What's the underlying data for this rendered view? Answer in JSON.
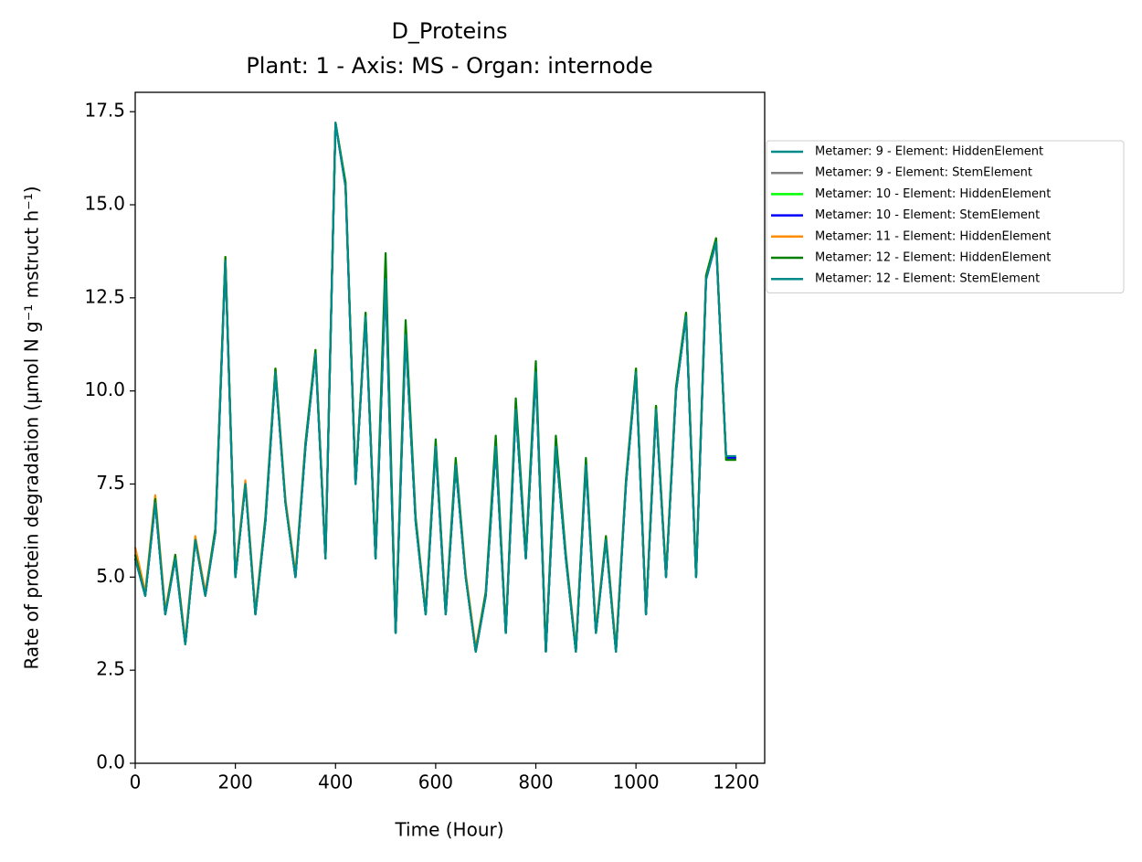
{
  "chart_data": {
    "type": "line",
    "title": "D_Proteins",
    "subtitle": "Plant: 1 - Axis: MS - Organ: internode",
    "x_label": "Time (Hour)",
    "y_label": "Rate of protein degradation (μmol N g⁻¹ mstruct h⁻¹)",
    "x": [
      0,
      20,
      40,
      60,
      80,
      100,
      120,
      140,
      160,
      180,
      200,
      220,
      240,
      260,
      280,
      300,
      320,
      340,
      360,
      380,
      400,
      420,
      440,
      460,
      480,
      500,
      520,
      540,
      560,
      580,
      600,
      620,
      640,
      660,
      680,
      700,
      720,
      740,
      760,
      780,
      800,
      820,
      840,
      860,
      880,
      900,
      920,
      940,
      960,
      980,
      1000,
      1020,
      1040,
      1060,
      1080,
      1100,
      1120,
      1140,
      1160,
      1180,
      1200
    ],
    "series": [
      {
        "name": "Metamer: 9 - Element: HiddenElement",
        "color": "#008b8b",
        "values": [
          5.5,
          4.5,
          7.0,
          4.0,
          5.5,
          3.2,
          6.0,
          4.5,
          6.2,
          13.5,
          5.0,
          7.5,
          4.0,
          6.5,
          10.5,
          7.0,
          5.0,
          8.5,
          11.0,
          5.5,
          17.2,
          15.5,
          7.5,
          12.0,
          5.5,
          13.0,
          3.5,
          11.5,
          6.5,
          4.0,
          8.5,
          4.0,
          8.0,
          5.0,
          3.0,
          4.5,
          8.5,
          3.5,
          9.5,
          5.5,
          10.5,
          3.0,
          8.5,
          5.5,
          3.0,
          8.0,
          3.5,
          6.0,
          3.0,
          7.5,
          10.5,
          4.0,
          9.5,
          5.0,
          10.0,
          12.0,
          5.0,
          13.0,
          14.0,
          8.2,
          8.2
        ]
      },
      {
        "name": "Metamer: 9 - Element: StemElement",
        "color": "#808080",
        "values": [
          5.5,
          4.5,
          7.0,
          4.0,
          5.5,
          3.2,
          6.0,
          4.5,
          6.2,
          13.5,
          5.0,
          7.5,
          4.0,
          6.5,
          10.5,
          7.0,
          5.0,
          8.5,
          11.0,
          5.5,
          17.2,
          15.5,
          7.5,
          12.0,
          5.5,
          13.0,
          3.5,
          11.5,
          6.5,
          4.0,
          8.5,
          4.0,
          8.0,
          5.0,
          3.0,
          4.5,
          8.5,
          3.5,
          9.5,
          5.5,
          10.5,
          3.0,
          8.5,
          5.5,
          3.0,
          8.0,
          3.5,
          6.0,
          3.0,
          7.5,
          10.5,
          4.0,
          9.5,
          5.0,
          10.0,
          12.0,
          5.0,
          13.0,
          14.0,
          8.2,
          8.2
        ]
      },
      {
        "name": "Metamer: 10 - Element: HiddenElement",
        "color": "#00ff00",
        "values": [
          5.6,
          4.5,
          7.1,
          4.0,
          5.5,
          3.2,
          6.0,
          4.5,
          6.3,
          13.6,
          5.0,
          7.5,
          4.0,
          6.5,
          10.6,
          7.0,
          5.0,
          8.6,
          11.1,
          5.5,
          17.2,
          15.6,
          7.5,
          12.1,
          5.5,
          13.2,
          3.5,
          11.6,
          6.5,
          4.0,
          8.6,
          4.0,
          8.1,
          5.0,
          3.0,
          4.5,
          8.6,
          3.5,
          9.6,
          5.5,
          10.6,
          3.0,
          8.6,
          5.5,
          3.0,
          8.1,
          3.5,
          6.0,
          3.0,
          7.5,
          10.6,
          4.0,
          9.6,
          5.0,
          10.1,
          12.1,
          5.0,
          13.1,
          14.1,
          8.15,
          8.15
        ]
      },
      {
        "name": "Metamer: 10 - Element: StemElement",
        "color": "#0000ff",
        "values": [
          5.5,
          4.5,
          7.0,
          4.0,
          5.5,
          3.2,
          6.0,
          4.5,
          6.2,
          13.5,
          5.0,
          7.5,
          4.0,
          6.5,
          10.5,
          7.0,
          5.0,
          8.5,
          11.0,
          5.5,
          17.2,
          15.5,
          7.5,
          12.0,
          5.5,
          13.0,
          3.5,
          11.5,
          6.5,
          4.0,
          8.5,
          4.0,
          8.0,
          5.0,
          3.0,
          4.5,
          8.5,
          3.5,
          9.5,
          5.5,
          10.5,
          3.0,
          8.5,
          5.5,
          3.0,
          8.0,
          3.5,
          6.0,
          3.0,
          7.5,
          10.5,
          4.0,
          9.5,
          5.0,
          10.0,
          12.0,
          5.0,
          13.0,
          14.0,
          8.2,
          8.2
        ]
      },
      {
        "name": "Metamer: 11 - Element: HiddenElement",
        "color": "#ff8c00",
        "values": [
          5.8,
          4.6,
          7.2,
          4.1,
          5.6,
          3.3,
          6.1,
          4.6,
          6.3,
          13.6,
          5.1,
          7.6,
          4.1,
          6.6,
          10.6,
          7.1,
          5.1,
          8.6,
          11.1,
          5.6,
          17.2,
          15.6,
          7.6,
          12.1,
          5.6,
          13.3,
          3.6,
          11.7,
          6.6,
          4.1,
          8.6,
          4.1,
          8.1,
          5.1,
          3.1,
          4.6,
          8.6,
          3.6,
          9.6,
          5.6,
          10.6,
          3.1,
          8.6,
          5.6,
          3.1,
          8.1,
          3.6,
          6.1,
          3.1,
          7.6,
          10.6,
          4.1,
          9.6,
          5.1,
          10.1,
          12.1,
          5.1,
          13.1,
          14.1,
          8.15,
          8.15
        ]
      },
      {
        "name": "Metamer: 12 - Element: HiddenElement",
        "color": "#008000",
        "values": [
          5.6,
          4.5,
          7.1,
          4.0,
          5.6,
          3.2,
          6.0,
          4.5,
          6.3,
          13.6,
          5.0,
          7.5,
          4.0,
          6.6,
          10.6,
          7.0,
          5.0,
          8.6,
          11.1,
          5.5,
          17.2,
          15.6,
          7.5,
          12.1,
          5.5,
          13.7,
          3.5,
          11.9,
          6.6,
          4.0,
          8.7,
          4.0,
          8.2,
          5.0,
          3.0,
          4.6,
          8.8,
          3.5,
          9.8,
          5.6,
          10.8,
          3.0,
          8.8,
          5.6,
          3.0,
          8.2,
          3.5,
          6.1,
          3.0,
          7.6,
          10.6,
          4.0,
          9.6,
          5.0,
          10.1,
          12.1,
          5.0,
          13.1,
          14.1,
          8.15,
          8.15
        ]
      },
      {
        "name": "Metamer: 12 - Element: StemElement",
        "color": "#008b8b",
        "values": [
          5.5,
          4.5,
          7.0,
          4.0,
          5.5,
          3.2,
          6.0,
          4.5,
          6.2,
          13.5,
          5.0,
          7.5,
          4.0,
          6.5,
          10.5,
          7.0,
          5.0,
          8.5,
          11.0,
          5.5,
          17.2,
          15.5,
          7.5,
          12.0,
          5.5,
          13.0,
          3.5,
          11.5,
          6.5,
          4.0,
          8.5,
          4.0,
          8.0,
          5.0,
          3.0,
          4.5,
          8.5,
          3.5,
          9.5,
          5.5,
          10.5,
          3.0,
          8.5,
          5.5,
          3.0,
          8.0,
          3.5,
          6.0,
          3.0,
          7.5,
          10.5,
          4.0,
          9.5,
          5.0,
          10.0,
          12.0,
          5.0,
          13.0,
          14.0,
          8.25,
          8.25
        ]
      }
    ],
    "xlim": [
      0,
      1257
    ],
    "ylim": [
      0,
      18.02
    ],
    "xticks": [
      0,
      200,
      400,
      600,
      800,
      1000,
      1200
    ],
    "yticks": [
      {
        "value": 0,
        "label": "0.0"
      },
      2.5,
      {
        "value": 5,
        "label": "5.0"
      },
      7.5,
      {
        "value": 10,
        "label": "10.0"
      },
      12.5,
      {
        "value": 15,
        "label": "15.0"
      },
      17.5
    ],
    "legend": "outside-right"
  }
}
